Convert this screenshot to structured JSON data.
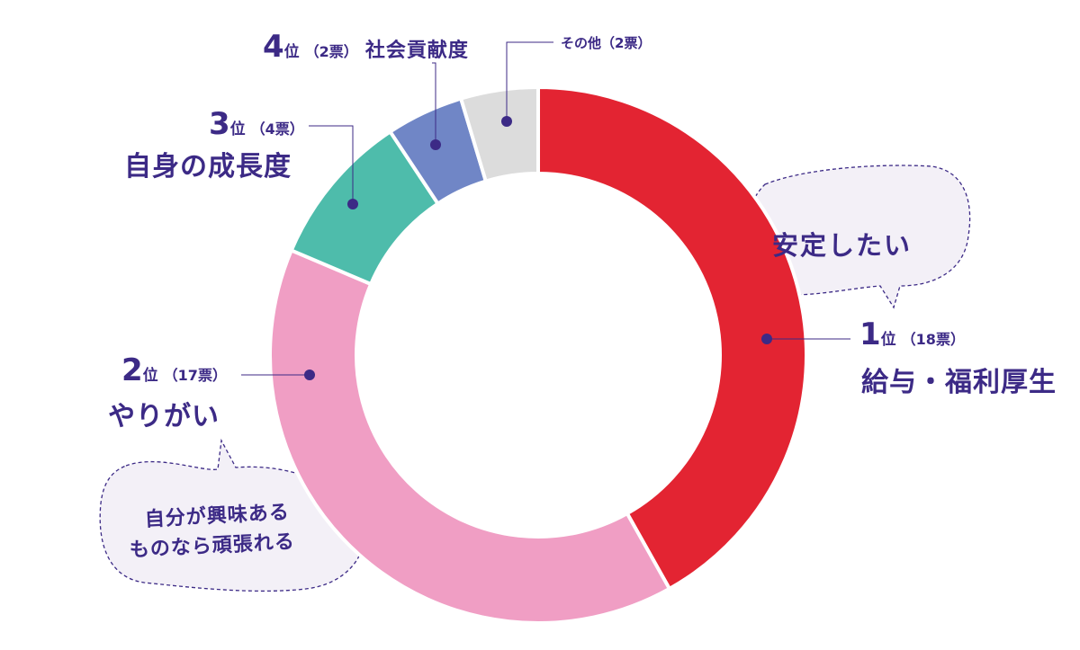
{
  "chart_data": {
    "type": "pie",
    "title": "",
    "slices": [
      {
        "rank": "1",
        "rank_suffix": "位",
        "votes_label": "（18票）",
        "category": "給与・福利厚生",
        "value": 18,
        "color": "#e32432"
      },
      {
        "rank": "2",
        "rank_suffix": "位",
        "votes_label": "（17票）",
        "category": "やりがい",
        "value": 17,
        "color": "#f09ec4"
      },
      {
        "rank": "3",
        "rank_suffix": "位",
        "votes_label": "（4票）",
        "category": "自身の成長度",
        "value": 4,
        "color": "#4ebcab"
      },
      {
        "rank": "4",
        "rank_suffix": "位",
        "votes_label": "（2票）",
        "category": "社会貢献度",
        "value": 2,
        "color": "#7086c6"
      },
      {
        "rank": "",
        "rank_suffix": "",
        "votes_label": "（2票）",
        "category": "その他",
        "value": 2,
        "color": "#dcdcdc"
      }
    ],
    "annotations": [
      {
        "text": "安定したい"
      },
      {
        "lines": [
          "自分が興味ある",
          "ものなら頑張れる"
        ]
      }
    ]
  },
  "colors": {
    "label_text": "#3c2a86",
    "bubble_fill": "#f3f0f7",
    "leader_line": "#3c2a86"
  }
}
